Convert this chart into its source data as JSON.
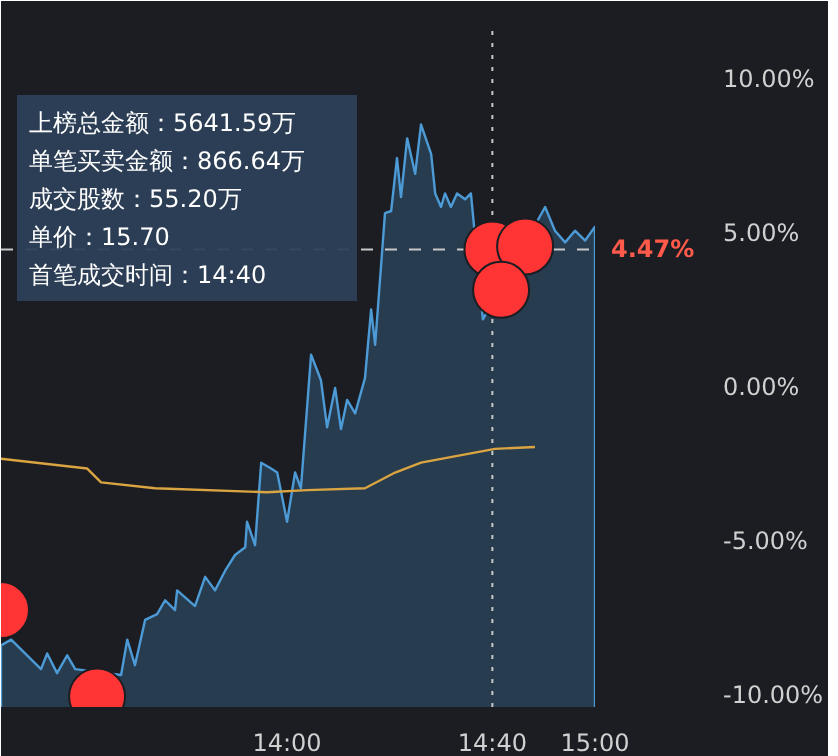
{
  "chart_data": {
    "type": "area",
    "xlim": [
      13.071,
      15.0
    ],
    "xticks": [
      {
        "value": 14,
        "label": "14:00"
      },
      {
        "value": 14.6667,
        "label": "14:40"
      },
      {
        "value": 15,
        "label": "15:00"
      }
    ],
    "ylim": [
      -10.4,
      11.7
    ],
    "yticks": [
      {
        "value": 10,
        "label": "10.00%"
      },
      {
        "value": 5,
        "label": "5.00%"
      },
      {
        "value": 0,
        "label": "0.00%"
      },
      {
        "value": -5,
        "label": "-5.00%"
      },
      {
        "value": -10,
        "label": "-10.00%"
      }
    ],
    "grid": false,
    "legend": false,
    "series": [
      {
        "type": "area",
        "color": "#4d9bd6",
        "x": [
          13.071,
          13.104,
          13.136,
          13.201,
          13.221,
          13.253,
          13.286,
          13.312,
          13.461,
          13.481,
          13.506,
          13.539,
          13.578,
          13.604,
          13.636,
          13.643,
          13.701,
          13.734,
          13.766,
          13.799,
          13.831,
          13.864,
          13.87,
          13.896,
          13.916,
          13.948,
          13.968,
          14.0,
          14.026,
          14.045,
          14.078,
          14.11,
          14.13,
          14.156,
          14.175,
          14.195,
          14.221,
          14.253,
          14.273,
          14.286,
          14.318,
          14.338,
          14.357,
          14.37,
          14.39,
          14.416,
          14.435,
          14.468,
          14.481,
          14.5,
          14.513,
          14.532,
          14.552,
          14.578,
          14.597,
          14.636,
          14.838,
          14.87,
          14.903,
          14.935,
          14.968,
          15.0
        ],
        "values": [
          -8.4,
          -8.21,
          -8.53,
          -9.17,
          -8.66,
          -9.3,
          -8.72,
          -9.17,
          -9.36,
          -8.21,
          -9.04,
          -7.57,
          -7.38,
          -6.93,
          -7.25,
          -6.61,
          -7.12,
          -6.17,
          -6.61,
          -5.97,
          -5.46,
          -5.21,
          -4.38,
          -5.14,
          -2.46,
          -2.65,
          -2.78,
          -4.38,
          -2.78,
          -3.29,
          1.05,
          0.22,
          -1.31,
          -0.03,
          -1.37,
          -0.42,
          -0.86,
          0.29,
          2.52,
          1.37,
          5.65,
          5.72,
          7.44,
          6.17,
          8.08,
          6.93,
          8.53,
          7.57,
          6.29,
          5.85,
          6.29,
          5.85,
          6.29,
          6.1,
          6.29,
          2.2,
          5.85,
          5.08,
          4.7,
          5.08,
          4.76,
          5.21
        ]
      },
      {
        "type": "line",
        "color": "#d9a441",
        "x": [
          13.071,
          13.351,
          13.396,
          13.571,
          13.935,
          14.065,
          14.253,
          14.351,
          14.435,
          14.675,
          14.805
        ],
        "values": [
          -2.33,
          -2.65,
          -3.1,
          -3.29,
          -3.42,
          -3.35,
          -3.29,
          -2.78,
          -2.46,
          -2.01,
          -1.95
        ]
      },
      {
        "type": "scatter",
        "color": "#ff3535",
        "marker": "circle",
        "x": [
          13.071,
          13.383,
          14.667,
          14.773,
          14.695
        ],
        "values": [
          -7.25,
          -10.06,
          4.47,
          4.57,
          3.16
        ]
      }
    ],
    "ref_lines": [
      {
        "axis": "x",
        "value": 14.6667,
        "color": "#c8c8c8",
        "line_style": "dotted"
      },
      {
        "axis": "y",
        "value": 4.47,
        "label": "4.47%",
        "color": "#c8c8c8",
        "line_style": "dashed"
      }
    ],
    "annotations": [
      "上榜总金额：5641.59万",
      "单笔买卖金额：866.64万",
      "成交股数：55.20万",
      "单价：15.70",
      "首笔成交时间：14:40"
    ]
  }
}
